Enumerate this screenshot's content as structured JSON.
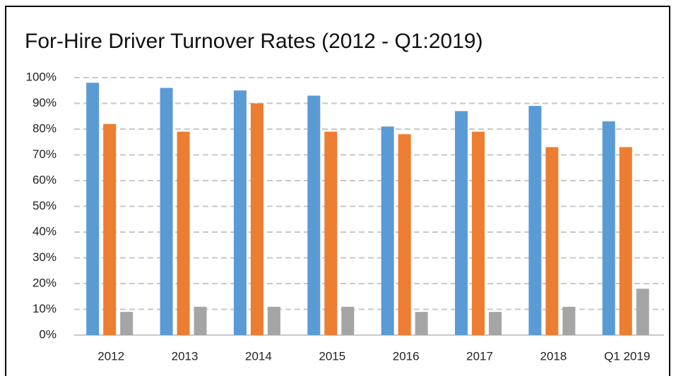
{
  "chart_data": {
    "type": "bar",
    "title": "For-Hire Driver Turnover Rates (2012 - Q1:2019)",
    "categories": [
      "2012",
      "2013",
      "2014",
      "2015",
      "2016",
      "2017",
      "2018",
      "Q1 2019"
    ],
    "series": [
      {
        "color": "#5b9bd5",
        "values": [
          98,
          96,
          95,
          93,
          81,
          87,
          89,
          83
        ]
      },
      {
        "color": "#ed7d31",
        "values": [
          82,
          79,
          90,
          79,
          78,
          79,
          73,
          73
        ]
      },
      {
        "color": "#a5a5a5",
        "values": [
          9,
          11,
          11,
          11,
          9,
          9,
          11,
          18
        ]
      }
    ],
    "ylim": [
      0,
      100
    ],
    "yticks": [
      {
        "value": 0,
        "label": "0%"
      },
      {
        "value": 10,
        "label": "10%"
      },
      {
        "value": 20,
        "label": "20%"
      },
      {
        "value": 30,
        "label": "30%"
      },
      {
        "value": 40,
        "label": "40%"
      },
      {
        "value": 50,
        "label": "50%"
      },
      {
        "value": 60,
        "label": "60%"
      },
      {
        "value": 70,
        "label": "70%"
      },
      {
        "value": 80,
        "label": "80%"
      },
      {
        "value": 90,
        "label": "90%"
      },
      {
        "value": 100,
        "label": "100%"
      }
    ],
    "grid": true
  }
}
